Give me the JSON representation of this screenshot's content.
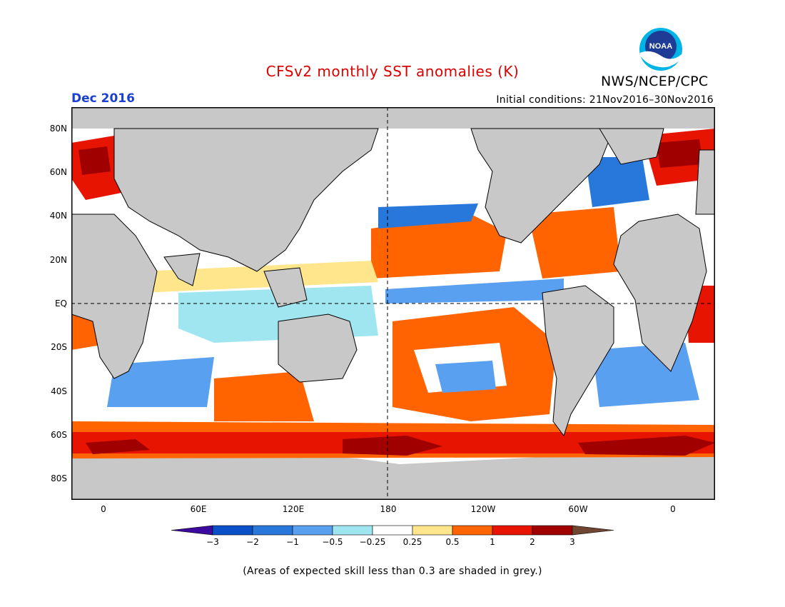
{
  "header": {
    "title": "CFSv2 monthly SST anomalies (K)",
    "agency": "NWS/NCEP/CPC",
    "logo_text": "NOAA",
    "month": "Dec 2016",
    "initial_conditions": "Initial conditions: 21Nov2016–30Nov2016"
  },
  "map": {
    "land_color": "#c8c8c8",
    "ocean_neutral_color": "#ffffff",
    "lat_labels": [
      "80N",
      "60N",
      "40N",
      "20N",
      "EQ",
      "20S",
      "40S",
      "60S",
      "80S"
    ],
    "lon_labels": [
      "0",
      "60E",
      "120E",
      "180",
      "120W",
      "60W",
      "0"
    ]
  },
  "colorbar": {
    "colors": [
      "#3c0aa0",
      "#0a50c8",
      "#2878dc",
      "#5aa0f0",
      "#a0e6f0",
      "#ffffff",
      "#ffe68c",
      "#ff6400",
      "#e61400",
      "#a00000",
      "#6e4632"
    ],
    "tick_labels": [
      "−3",
      "−2",
      "−1",
      "−0.5",
      "−0.25",
      "0.25",
      "0.5",
      "1",
      "2",
      "3"
    ]
  },
  "footer": {
    "note": "(Areas of expected skill less than 0.3 are shaded in grey.)"
  }
}
